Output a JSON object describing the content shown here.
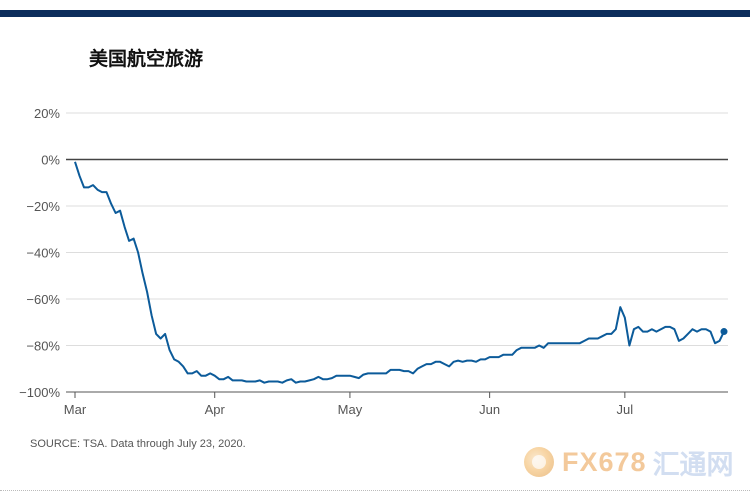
{
  "title": "美国航空旅游",
  "source": "SOURCE: TSA. Data through July 23, 2020.",
  "watermark": {
    "brand": "FX678",
    "cn": "汇通网"
  },
  "colors": {
    "line": "#0c5b9a",
    "topbar": "#0c2d5c",
    "grid": "#dddddd",
    "zero": "#444444"
  },
  "chart_data": {
    "type": "line",
    "title": "美国航空旅游",
    "xlabel": "",
    "ylabel": "",
    "ylim": [
      -100,
      20
    ],
    "yticks": [
      20,
      0,
      -20,
      -40,
      -60,
      -80,
      -100
    ],
    "ytick_labels": [
      "20%",
      "0%",
      "−20%",
      "−40%",
      "−60%",
      "−80%",
      "−100%"
    ],
    "xticks": [
      "Mar",
      "Apr",
      "May",
      "Jun",
      "Jul"
    ],
    "xtick_day": [
      1,
      32,
      62,
      93,
      123
    ],
    "grid": true,
    "series": [
      {
        "name": "",
        "x": [
          1,
          2,
          3,
          4,
          5,
          6,
          7,
          8,
          9,
          10,
          11,
          12,
          13,
          14,
          15,
          16,
          17,
          18,
          19,
          20,
          21,
          22,
          23,
          24,
          25,
          26,
          27,
          28,
          29,
          30,
          31,
          32,
          33,
          34,
          35,
          36,
          37,
          38,
          39,
          40,
          41,
          42,
          43,
          44,
          45,
          46,
          47,
          48,
          49,
          50,
          51,
          52,
          53,
          54,
          55,
          56,
          57,
          58,
          59,
          60,
          61,
          62,
          63,
          64,
          65,
          66,
          67,
          68,
          69,
          70,
          71,
          72,
          73,
          74,
          75,
          76,
          77,
          78,
          79,
          80,
          81,
          82,
          83,
          84,
          85,
          86,
          87,
          88,
          89,
          90,
          91,
          92,
          93,
          94,
          95,
          96,
          97,
          98,
          99,
          100,
          101,
          102,
          103,
          104,
          105,
          106,
          107,
          108,
          109,
          110,
          111,
          112,
          113,
          114,
          115,
          116,
          117,
          118,
          119,
          120,
          121,
          122,
          123,
          124,
          125,
          126,
          127,
          128,
          129,
          130,
          131,
          132,
          133,
          134,
          135,
          136,
          137,
          138,
          139,
          140,
          141,
          142,
          143,
          144,
          145
        ],
        "y": [
          -1,
          -7,
          -12,
          -12,
          -11,
          -13,
          -14,
          -14,
          -19,
          -23,
          -22,
          -29,
          -35,
          -34,
          -40,
          -49,
          -57,
          -67,
          -75,
          -77,
          -75,
          -82,
          -86,
          -87,
          -89,
          -92,
          -92,
          -91,
          -93,
          -93,
          -92,
          -93,
          -94.5,
          -94.5,
          -93.5,
          -95,
          -95,
          -95,
          -95.5,
          -95.5,
          -95.5,
          -95,
          -96,
          -95.5,
          -95.5,
          -95.5,
          -96,
          -95,
          -94.5,
          -96,
          -95.5,
          -95.5,
          -95,
          -94.5,
          -93.5,
          -94.5,
          -94.5,
          -94,
          -93,
          -93,
          -93,
          -93,
          -93.5,
          -94,
          -92.5,
          -92,
          -92,
          -92,
          -92,
          -92,
          -90.5,
          -90.5,
          -90.5,
          -91,
          -91,
          -92,
          -90,
          -89,
          -88,
          -88,
          -87,
          -87,
          -88,
          -89,
          -87,
          -86.5,
          -87,
          -86.5,
          -86.5,
          -87,
          -86,
          -86,
          -85,
          -85,
          -85,
          -84,
          -84,
          -84,
          -82,
          -81,
          -81,
          -81,
          -81,
          -80,
          -81,
          -79,
          -79,
          -79,
          -79,
          -79,
          -79,
          -79,
          -79,
          -78,
          -77,
          -77,
          -77,
          -76,
          -75,
          -75,
          -73,
          -63.5,
          -68,
          -80,
          -73,
          -72,
          -74,
          -74,
          -73,
          -74,
          -73,
          -72,
          -72,
          -73,
          -78,
          -77,
          -75,
          -73,
          -74,
          -73,
          -73,
          -74,
          -79,
          -78,
          -74
        ]
      }
    ],
    "last_point_marker": true
  }
}
